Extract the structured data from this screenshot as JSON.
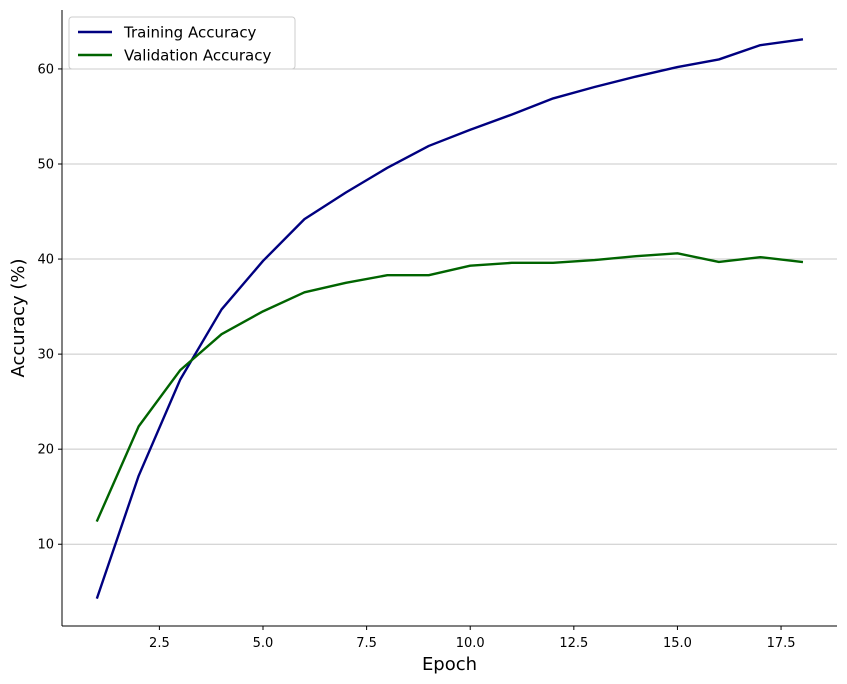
{
  "chart_data": {
    "type": "line",
    "title": "",
    "xlabel": "Epoch",
    "ylabel": "Accuracy (%)",
    "xlim": [
      0.15,
      18.85
    ],
    "ylim": [
      1.4,
      66.2
    ],
    "xticks": [
      2.5,
      5.0,
      7.5,
      10.0,
      12.5,
      15.0,
      17.5
    ],
    "xtick_labels": [
      "2.5",
      "5.0",
      "7.5",
      "10.0",
      "12.5",
      "15.0",
      "17.5"
    ],
    "yticks": [
      10,
      20,
      30,
      40,
      50,
      60
    ],
    "ytick_labels": [
      "10",
      "20",
      "30",
      "40",
      "50",
      "60"
    ],
    "grid": "horizontal",
    "legend_position": "top-left",
    "x": [
      1,
      2,
      3,
      4,
      5,
      6,
      7,
      8,
      9,
      10,
      11,
      12,
      13,
      14,
      15,
      16,
      17,
      18
    ],
    "series": [
      {
        "name": "Training Accuracy",
        "color": "#000080",
        "values": [
          4.4,
          17.2,
          27.3,
          34.7,
          39.8,
          44.2,
          47.0,
          49.6,
          51.9,
          53.6,
          55.2,
          56.9,
          58.1,
          59.2,
          60.2,
          61.0,
          62.5,
          63.1
        ]
      },
      {
        "name": "Validation Accuracy",
        "color": "#006400",
        "values": [
          12.5,
          22.4,
          28.3,
          32.1,
          34.5,
          36.5,
          37.5,
          38.3,
          38.3,
          39.3,
          39.6,
          39.6,
          39.9,
          40.3,
          40.6,
          39.7,
          40.2,
          39.7
        ]
      }
    ]
  }
}
